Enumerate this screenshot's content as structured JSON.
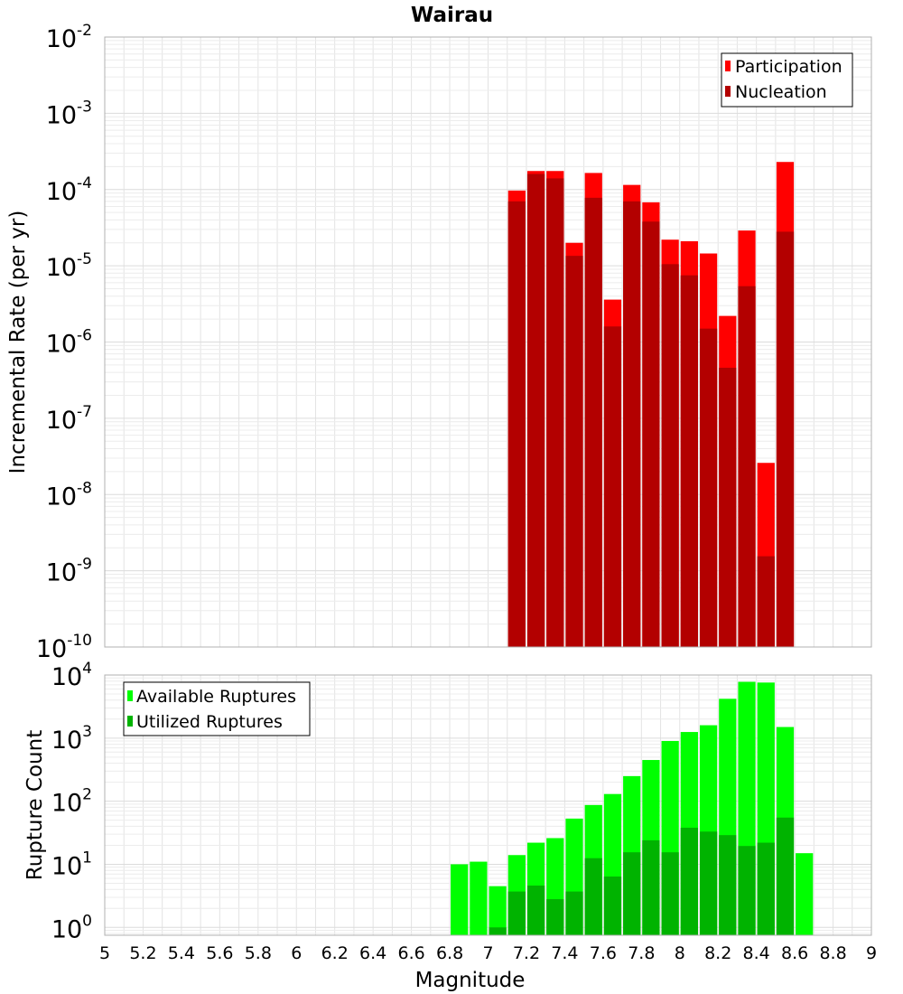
{
  "chart_data": [
    {
      "type": "bar",
      "title": "Wairau",
      "xlabel": "",
      "ylabel": "Incremental Rate (per yr)",
      "xlim": [
        5,
        9
      ],
      "ylim": [
        1e-10,
        0.01
      ],
      "yscale": "log",
      "grid": true,
      "legend_position": "top-right",
      "bin_width": 0.1,
      "ytick_mantissa": "10",
      "yticks": [
        {
          "value": 1e-10,
          "exp": "-10"
        },
        {
          "value": 1e-09,
          "exp": "-9"
        },
        {
          "value": 1e-08,
          "exp": "-8"
        },
        {
          "value": 1e-07,
          "exp": "-7"
        },
        {
          "value": 1e-06,
          "exp": "-6"
        },
        {
          "value": 1e-05,
          "exp": "-5"
        },
        {
          "value": 0.0001,
          "exp": "-4"
        },
        {
          "value": 0.001,
          "exp": "-3"
        },
        {
          "value": 0.01,
          "exp": "-2"
        }
      ],
      "series": [
        {
          "name": "Participation",
          "color": "#ff0000",
          "x": [
            7.15,
            7.25,
            7.35,
            7.45,
            7.55,
            7.65,
            7.75,
            7.85,
            7.95,
            8.05,
            8.15,
            8.25,
            8.35,
            8.45,
            8.55
          ],
          "values": [
            9.7e-05,
            0.000175,
            0.000175,
            2e-05,
            0.000165,
            3.6e-06,
            0.000115,
            6.8e-05,
            2.2e-05,
            2.1e-05,
            1.45e-05,
            2.2e-06,
            2.9e-05,
            2.6e-08,
            0.00023
          ]
        },
        {
          "name": "Nucleation",
          "color": "#b30000",
          "x": [
            7.15,
            7.25,
            7.35,
            7.45,
            7.55,
            7.65,
            7.75,
            7.85,
            7.95,
            8.05,
            8.15,
            8.25,
            8.35,
            8.45,
            8.55
          ],
          "values": [
            7e-05,
            0.00016,
            0.00014,
            1.35e-05,
            7.8e-05,
            1.6e-06,
            7e-05,
            3.8e-05,
            1.05e-05,
            7.5e-06,
            1.5e-06,
            4.6e-07,
            5.4e-06,
            1.55e-09,
            2.8e-05
          ]
        }
      ]
    },
    {
      "type": "bar",
      "title": "",
      "xlabel": "Magnitude",
      "ylabel": "Rupture Count",
      "xlim": [
        5,
        9
      ],
      "ylim": [
        0.75,
        10000
      ],
      "yscale": "log",
      "grid": true,
      "legend_position": "top-left",
      "bin_width": 0.1,
      "ytick_mantissa": "10",
      "yticks": [
        {
          "value": 1,
          "exp": "0"
        },
        {
          "value": 10,
          "exp": "1"
        },
        {
          "value": 100,
          "exp": "2"
        },
        {
          "value": 1000,
          "exp": "3"
        },
        {
          "value": 10000,
          "exp": "4"
        }
      ],
      "xticks": [
        "5",
        "5.2",
        "5.4",
        "5.6",
        "5.8",
        "6",
        "6.2",
        "6.4",
        "6.6",
        "6.8",
        "7",
        "7.2",
        "7.4",
        "7.6",
        "7.8",
        "8",
        "8.2",
        "8.4",
        "8.6",
        "8.8",
        "9"
      ],
      "series": [
        {
          "name": "Available Ruptures",
          "color": "#00ff00",
          "x": [
            6.85,
            6.95,
            7.05,
            7.15,
            7.25,
            7.35,
            7.45,
            7.55,
            7.65,
            7.75,
            7.85,
            7.95,
            8.05,
            8.15,
            8.25,
            8.35,
            8.45,
            8.55,
            8.65
          ],
          "values": [
            10,
            11,
            4.5,
            14,
            22,
            26,
            53,
            87,
            130,
            250,
            450,
            900,
            1250,
            1600,
            4200,
            7800,
            7600,
            1500,
            15
          ]
        },
        {
          "name": "Utilized Ruptures",
          "color": "#00b300",
          "x": [
            7.05,
            7.15,
            7.25,
            7.35,
            7.45,
            7.55,
            7.65,
            7.75,
            7.85,
            7.95,
            8.05,
            8.15,
            8.25,
            8.35,
            8.45,
            8.55
          ],
          "values": [
            1,
            3.7,
            4.6,
            2.8,
            3.7,
            12.5,
            6.4,
            15.5,
            24,
            15.5,
            38,
            33,
            29,
            19.5,
            22,
            55
          ]
        }
      ]
    }
  ]
}
